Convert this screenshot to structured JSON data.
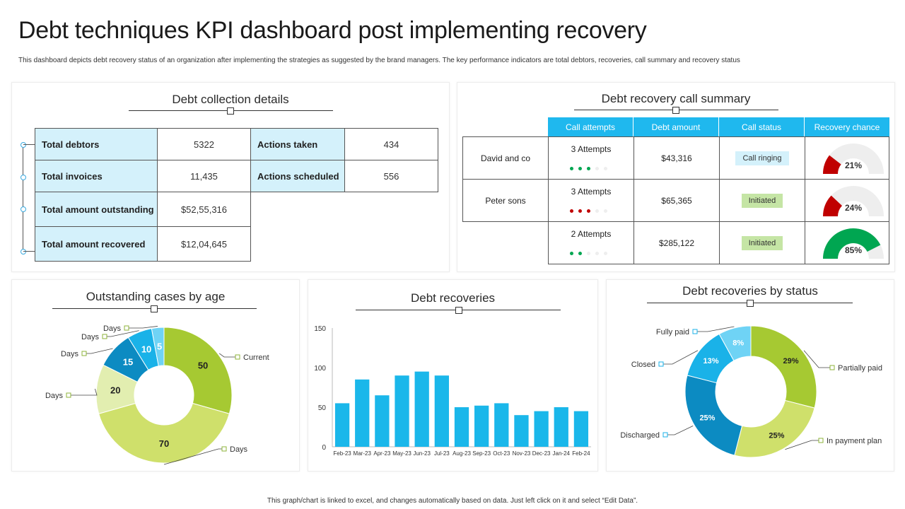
{
  "page": {
    "title": "Debt techniques KPI dashboard post implementing recovery",
    "subtitle": "This dashboard depicts debt recovery status of an organization after implementing the strategies as suggested by the brand managers. The key performance indicators are total debtors, recoveries, call summary and recovery status",
    "footer": "This graph/chart is linked to excel, and changes automatically based on data. Just left click on it and select “Edit Data”."
  },
  "debt_collection": {
    "title": "Debt collection details",
    "left_rows": [
      {
        "label": "Total debtors",
        "value": "5322"
      },
      {
        "label": "Total invoices",
        "value": "11,435"
      },
      {
        "label": "Total amount outstanding",
        "value": "$52,55,316"
      },
      {
        "label": "Total amount recovered",
        "value": "$12,04,645"
      }
    ],
    "right_rows": [
      {
        "label": "Actions taken",
        "value": "434"
      },
      {
        "label": "Actions scheduled",
        "value": "556"
      }
    ]
  },
  "call_summary": {
    "title": "Debt recovery call summary",
    "headers": [
      "Call attempts",
      "Debt amount",
      "Call status",
      "Recovery chance"
    ],
    "rows": [
      {
        "name": "David and co",
        "attempts": "3 Attempts",
        "dots_filled": 3,
        "dot_color": "#00a651",
        "amount": "$43,316",
        "status": "Call ringing",
        "status_bg": "#d4f1fb",
        "chance": 21,
        "chance_label": "21%",
        "gauge_color": "#c00000"
      },
      {
        "name": "Peter sons",
        "attempts": "3 Attempts",
        "dots_filled": 3,
        "dot_color": "#c00000",
        "amount": "$65,365",
        "status": "Initiated",
        "status_bg": "#c5e5a5",
        "chance": 24,
        "chance_label": "24%",
        "gauge_color": "#c00000"
      },
      {
        "name": "",
        "attempts": "2 Attempts",
        "dots_filled": 2,
        "dot_color": "#00a651",
        "amount": "$285,122",
        "status": "Initiated",
        "status_bg": "#c5e5a5",
        "chance": 85,
        "chance_label": "85%",
        "gauge_color": "#00a651"
      }
    ]
  },
  "chart_data": [
    {
      "type": "pie",
      "title": "Outstanding cases by age",
      "donut": true,
      "slices": [
        {
          "value": 50,
          "label": "50",
          "legend": "Current",
          "color": "#a6c932"
        },
        {
          "value": 70,
          "label": "70",
          "legend": "Days",
          "color": "#cfe06b"
        },
        {
          "value": 20,
          "label": "20",
          "legend": "Days",
          "color": "#e2eeb0"
        },
        {
          "value": 15,
          "label": "15",
          "legend": "Days",
          "color": "#0c8bc2"
        },
        {
          "value": 10,
          "label": "10",
          "legend": "Days",
          "color": "#1ab2e8"
        },
        {
          "value": 5,
          "label": "5",
          "legend": "Days",
          "color": "#6fd3f5"
        }
      ]
    },
    {
      "type": "bar",
      "title": "Debt recoveries",
      "categories": [
        "Feb-23",
        "Mar-23",
        "Apr-23",
        "May-23",
        "Jun-23",
        "Jul-23",
        "Aug-23",
        "Sep-23",
        "Oct-23",
        "Nov-23",
        "Dec-23",
        "Jan-24",
        "Feb-24"
      ],
      "values": [
        55,
        85,
        65,
        90,
        95,
        90,
        50,
        52,
        55,
        40,
        45,
        50,
        45
      ],
      "ylim": [
        0,
        150
      ],
      "yticks": [
        0,
        50,
        100,
        150
      ],
      "color": "#1ab7ea",
      "grid": false
    },
    {
      "type": "pie",
      "title": "Debt recoveries by status",
      "donut": true,
      "slices": [
        {
          "value": 29,
          "label": "29%",
          "legend": "Partially paid",
          "color": "#a6c932"
        },
        {
          "value": 25,
          "label": "25%",
          "legend": "In payment plan",
          "color": "#cfe06b"
        },
        {
          "value": 25,
          "label": "25%",
          "legend": "Discharged",
          "color": "#0c8bc2"
        },
        {
          "value": 13,
          "label": "13%",
          "legend": "Closed",
          "color": "#1ab2e8"
        },
        {
          "value": 8,
          "label": "8%",
          "legend": "Fully paid",
          "color": "#6fd3f5"
        }
      ]
    }
  ]
}
